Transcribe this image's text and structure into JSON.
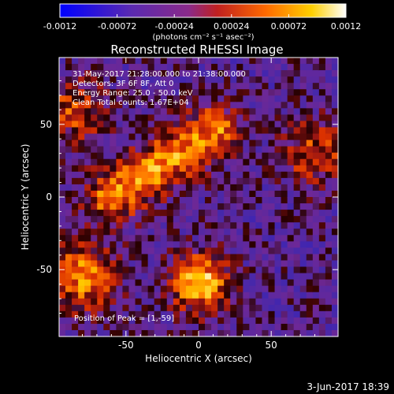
{
  "chart_data": {
    "type": "heatmap",
    "title": "Reconstructed RHESSI Image",
    "xlabel": "Heliocentric X (arcsec)",
    "ylabel": "Heliocentric Y (arcsec)",
    "xlim": [
      -96,
      96
    ],
    "ylim": [
      -96,
      96
    ],
    "x_ticks": [
      -50,
      0,
      50
    ],
    "y_ticks": [
      -50,
      0,
      50
    ],
    "grid": "off",
    "colorbar": {
      "range": [
        -0.0012,
        0.0012
      ],
      "tick_labels": [
        "-0.0012",
        "-0.00072",
        "-0.00024",
        "0.00024",
        "0.00072",
        "0.0012"
      ],
      "tick_values": [
        -0.0012,
        -0.00072,
        -0.00024,
        0.00024,
        0.00072,
        0.0012
      ],
      "units_label": "(photons cm⁻² s⁻¹ asec⁻²)",
      "colors": [
        "#0000ff",
        "#5a2ab0",
        "#8a3aa8",
        "#c0392b",
        "#ff6a00",
        "#ffd000",
        "#ffffff"
      ]
    },
    "annotations": {
      "time_range": "31-May-2017 21:28:00.000 to 21:38:00.000",
      "detectors": "Detectors: 3F 6F 8F, Att 0",
      "energy": "Energy Range: 25.0 - 50.0 keV",
      "clean": "Clean    Total counts: 1.67E+04",
      "peak": "Position of Peak = [1,-59]"
    },
    "peak_position": [
      1,
      -59
    ],
    "sources": [
      {
        "name": "diagonal ridge",
        "x_range": [
          -60,
          10
        ],
        "y_range": [
          0,
          45
        ],
        "level": "high"
      },
      {
        "name": "main peak",
        "x": 1,
        "y": -59,
        "level": "max"
      },
      {
        "name": "lower-left bright",
        "x": -80,
        "y": -55,
        "level": "high"
      },
      {
        "name": "right edge bright",
        "x": 80,
        "y": 30,
        "level": "moderate"
      },
      {
        "name": "upper-left bright",
        "x": -85,
        "y": 60,
        "level": "moderate"
      }
    ],
    "footer_date": "3-Jun-2017 18:39"
  }
}
